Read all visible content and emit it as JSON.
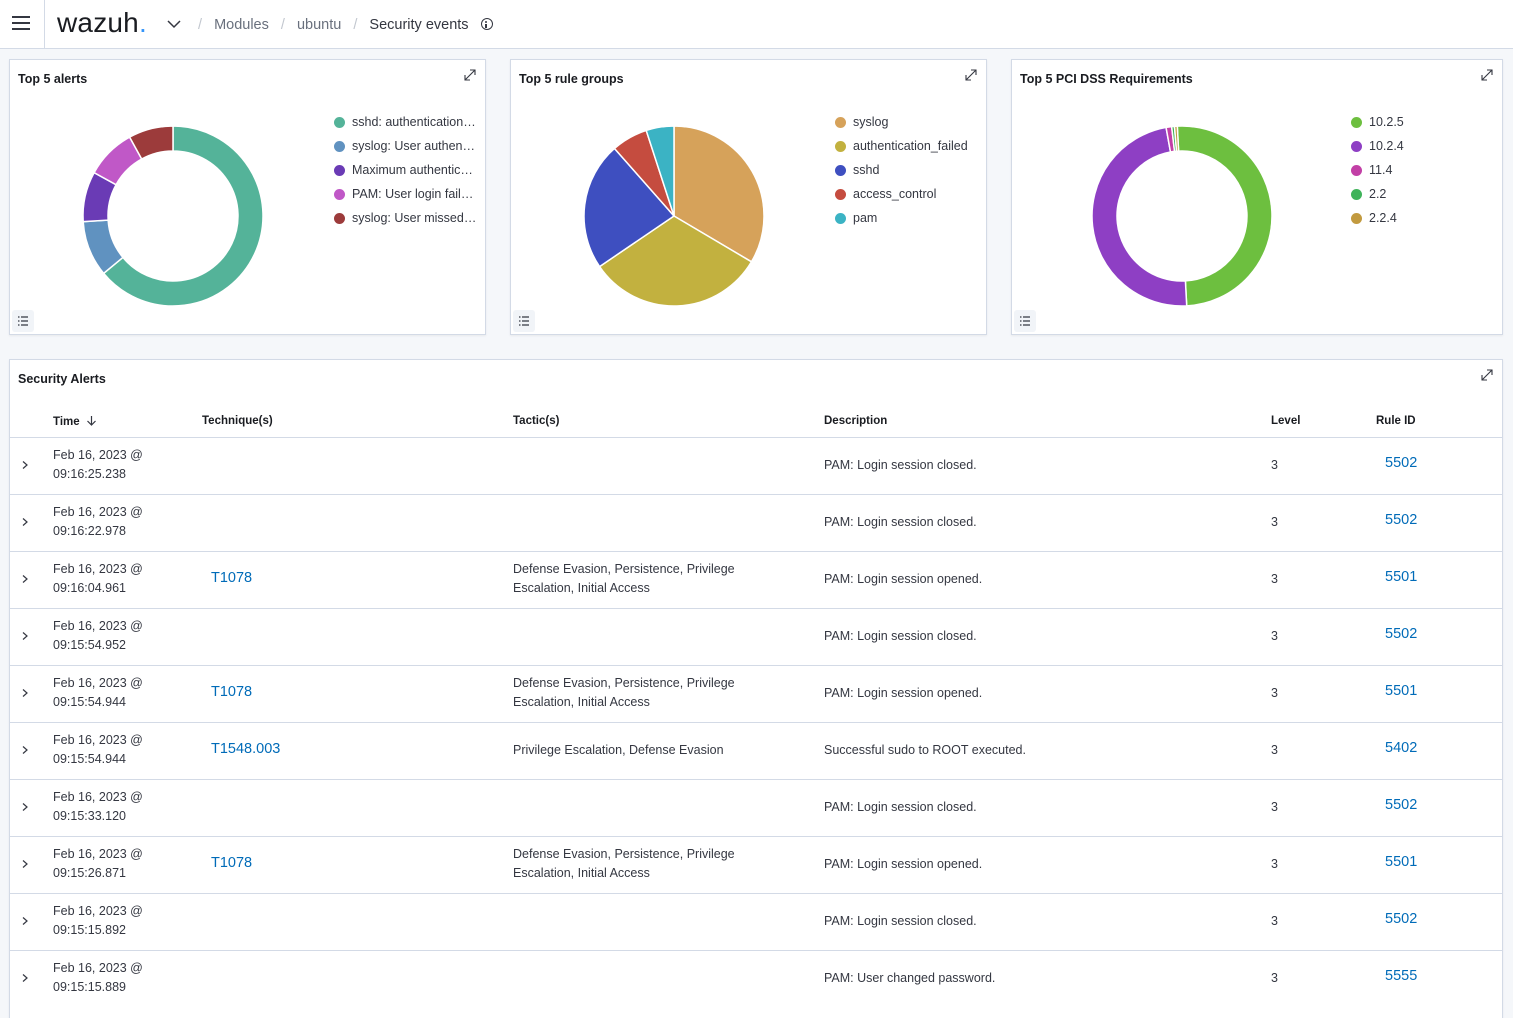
{
  "header": {
    "logo_text": "wazuh",
    "logo_dot": ".",
    "breadcrumbs": [
      "Modules",
      "ubuntu"
    ],
    "current": "Security events"
  },
  "panels": [
    {
      "title": "Top 5 alerts",
      "chart_type": "donut",
      "legend": [
        {
          "label": "sshd: authentication…",
          "color": "#54b399"
        },
        {
          "label": "syslog: User authen…",
          "color": "#6092c0"
        },
        {
          "label": "Maximum authentic…",
          "color": "#6a3bb5"
        },
        {
          "label": "PAM: User login fail…",
          "color": "#c058c7"
        },
        {
          "label": "syslog: User missed…",
          "color": "#9c3b3b"
        }
      ]
    },
    {
      "title": "Top 5 rule groups",
      "chart_type": "pie",
      "legend": [
        {
          "label": "syslog",
          "color": "#d6a25a"
        },
        {
          "label": "authentication_failed",
          "color": "#c2b13f"
        },
        {
          "label": "sshd",
          "color": "#3e4fc0"
        },
        {
          "label": "access_control",
          "color": "#c54c3f"
        },
        {
          "label": "pam",
          "color": "#3bb3c4"
        }
      ]
    },
    {
      "title": "Top 5 PCI DSS Requirements",
      "chart_type": "donut",
      "legend": [
        {
          "label": "10.2.5",
          "color": "#6dbf3f"
        },
        {
          "label": "10.2.4",
          "color": "#8e3fc4"
        },
        {
          "label": "11.4",
          "color": "#c23fa6"
        },
        {
          "label": "2.2",
          "color": "#3fb35a"
        },
        {
          "label": "2.2.4",
          "color": "#c29a3f"
        }
      ]
    }
  ],
  "chart_data": [
    {
      "type": "pie",
      "title": "Top 5 alerts",
      "categories": [
        "sshd: authentication…",
        "syslog: User authen…",
        "Maximum authentic…",
        "PAM: User login fail…",
        "syslog: User missed…"
      ],
      "values": [
        64,
        10,
        9,
        9,
        8
      ],
      "donut": true
    },
    {
      "type": "pie",
      "title": "Top 5 rule groups",
      "categories": [
        "syslog",
        "authentication_failed",
        "sshd",
        "access_control",
        "pam"
      ],
      "values": [
        33.5,
        32,
        23,
        6.5,
        5
      ],
      "donut": false
    },
    {
      "type": "pie",
      "title": "Top 5 PCI DSS Requirements",
      "categories": [
        "10.2.5",
        "10.2.4",
        "11.4",
        "2.2",
        "2.2.4"
      ],
      "values": [
        50,
        48,
        1,
        0.5,
        0.5
      ],
      "donut": true
    }
  ],
  "alerts": {
    "title": "Security Alerts",
    "columns": [
      "Time",
      "Technique(s)",
      "Tactic(s)",
      "Description",
      "Level",
      "Rule ID"
    ],
    "rows": [
      {
        "time": [
          "Feb 16, 2023 @",
          "09:16:25.238"
        ],
        "technique": "",
        "tactic": [
          "",
          ""
        ],
        "description": "PAM: Login session closed.",
        "level": "3",
        "rule_id": "5502"
      },
      {
        "time": [
          "Feb 16, 2023 @",
          "09:16:22.978"
        ],
        "technique": "",
        "tactic": [
          "",
          ""
        ],
        "description": "PAM: Login session closed.",
        "level": "3",
        "rule_id": "5502"
      },
      {
        "time": [
          "Feb 16, 2023 @",
          "09:16:04.961"
        ],
        "technique": "T1078",
        "tactic": [
          "Defense Evasion, Persistence, Privilege",
          "Escalation, Initial Access"
        ],
        "description": "PAM: Login session opened.",
        "level": "3",
        "rule_id": "5501"
      },
      {
        "time": [
          "Feb 16, 2023 @",
          "09:15:54.952"
        ],
        "technique": "",
        "tactic": [
          "",
          ""
        ],
        "description": "PAM: Login session closed.",
        "level": "3",
        "rule_id": "5502"
      },
      {
        "time": [
          "Feb 16, 2023 @",
          "09:15:54.944"
        ],
        "technique": "T1078",
        "tactic": [
          "Defense Evasion, Persistence, Privilege",
          "Escalation, Initial Access"
        ],
        "description": "PAM: Login session opened.",
        "level": "3",
        "rule_id": "5501"
      },
      {
        "time": [
          "Feb 16, 2023 @",
          "09:15:54.944"
        ],
        "technique": "T1548.003",
        "tactic": [
          "Privilege Escalation, Defense Evasion",
          ""
        ],
        "description": "Successful sudo to ROOT executed.",
        "level": "3",
        "rule_id": "5402"
      },
      {
        "time": [
          "Feb 16, 2023 @",
          "09:15:33.120"
        ],
        "technique": "",
        "tactic": [
          "",
          ""
        ],
        "description": "PAM: Login session closed.",
        "level": "3",
        "rule_id": "5502"
      },
      {
        "time": [
          "Feb 16, 2023 @",
          "09:15:26.871"
        ],
        "technique": "T1078",
        "tactic": [
          "Defense Evasion, Persistence, Privilege",
          "Escalation, Initial Access"
        ],
        "description": "PAM: Login session opened.",
        "level": "3",
        "rule_id": "5501"
      },
      {
        "time": [
          "Feb 16, 2023 @",
          "09:15:15.892"
        ],
        "technique": "",
        "tactic": [
          "",
          ""
        ],
        "description": "PAM: Login session closed.",
        "level": "3",
        "rule_id": "5502"
      },
      {
        "time": [
          "Feb 16, 2023 @",
          "09:15:15.889"
        ],
        "technique": "",
        "tactic": [
          "",
          ""
        ],
        "description": "PAM: User changed password.",
        "level": "3",
        "rule_id": "5555"
      }
    ]
  }
}
